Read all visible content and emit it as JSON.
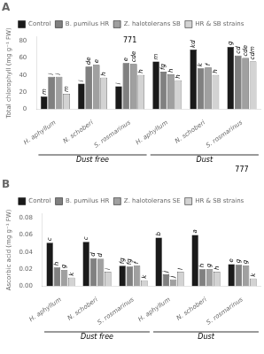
{
  "chart_data": [
    {
      "type": "bar",
      "title": "A",
      "y_label": "Total chlorophyll (mg g⁻¹ FW)",
      "categories": [
        "H. aphyllum",
        "N. schoberi",
        "S. rosmarinus",
        "H. aphyllum",
        "N. schoberi",
        "S. rosmarinus"
      ],
      "category_groups": [
        "Dust free",
        "Dust free",
        "Dust free",
        "Dust",
        "Dust",
        "Dust"
      ],
      "series": [
        {
          "name": "Control",
          "color": "#1a1a1a",
          "values": [
            15,
            30,
            27,
            56,
            70,
            73
          ],
          "stat_labels": [
            "m",
            "i",
            "i",
            "m",
            "kd",
            "g"
          ]
        },
        {
          "name": "B. pumilus HR",
          "color": "#808080",
          "values": [
            38,
            50,
            54,
            44,
            48,
            63
          ],
          "stat_labels": [
            "i",
            "de",
            "e",
            "fg",
            "k",
            "cd"
          ]
        },
        {
          "name": "Z. halotolerans SB",
          "color": "#a0a0a0",
          "values": [
            38,
            52,
            53,
            41,
            49,
            60
          ],
          "stat_labels": [
            "i",
            "e",
            "cde",
            "h",
            "f",
            "cde"
          ]
        },
        {
          "name": "HR & SB strains",
          "color": "#d3d3d3",
          "values": [
            18,
            37,
            40,
            34,
            40,
            56
          ],
          "stat_labels": [
            "m",
            "h",
            "h",
            "h",
            "h",
            "cdm"
          ]
        }
      ],
      "annotations": [
        {
          "text": "771",
          "category": 2,
          "position": "top"
        },
        {
          "text": "777",
          "category": 5,
          "position": "bottom"
        }
      ],
      "ylim": [
        0,
        85
      ],
      "yticks": [
        0,
        20,
        40,
        60,
        80
      ],
      "grid": false,
      "legend": "top"
    },
    {
      "type": "bar",
      "title": "B",
      "y_label": "Ascorbic acid (mg g⁻¹ FW)",
      "categories": [
        "H. aphyllum",
        "N. schoberi",
        "S. rosmarinus",
        "H. aphyllum",
        "N. schoberi",
        "S. rosmarinus"
      ],
      "category_groups": [
        "Dust free",
        "Dust free",
        "Dust free",
        "Dust",
        "Dust",
        "Dust"
      ],
      "series": [
        {
          "name": "Control",
          "color": "#1a1a1a",
          "values": [
            0.051,
            0.052,
            0.024,
            0.057,
            0.06,
            0.026
          ],
          "stat_labels": [
            "c",
            "c",
            "fg",
            "b",
            "a",
            "e"
          ]
        },
        {
          "name": "B. pumilus HR",
          "color": "#808080",
          "values": [
            0.022,
            0.033,
            0.023,
            0.014,
            0.02,
            0.025
          ],
          "stat_labels": [
            "h",
            "d",
            "fg",
            "j",
            "h",
            "g"
          ]
        },
        {
          "name": "Z. halotolerans SE",
          "color": "#a0a0a0",
          "values": [
            0.019,
            0.032,
            0.024,
            0.008,
            0.02,
            0.024
          ],
          "stat_labels": [
            "g",
            "d",
            "f",
            "j",
            "g",
            "g"
          ]
        },
        {
          "name": "HR & SB strains",
          "color": "#d3d3d3",
          "values": [
            0.01,
            0.017,
            0.007,
            0.017,
            0.017,
            0.009
          ],
          "stat_labels": [
            "k",
            "i",
            "k",
            "l",
            "h",
            "k"
          ]
        }
      ],
      "ylim": [
        0,
        0.085
      ],
      "yticks": [
        {
          "value": 0,
          "label": "0.00"
        },
        0.02,
        0.04,
        0.06,
        0.08
      ],
      "grid": false,
      "legend": "top"
    }
  ]
}
